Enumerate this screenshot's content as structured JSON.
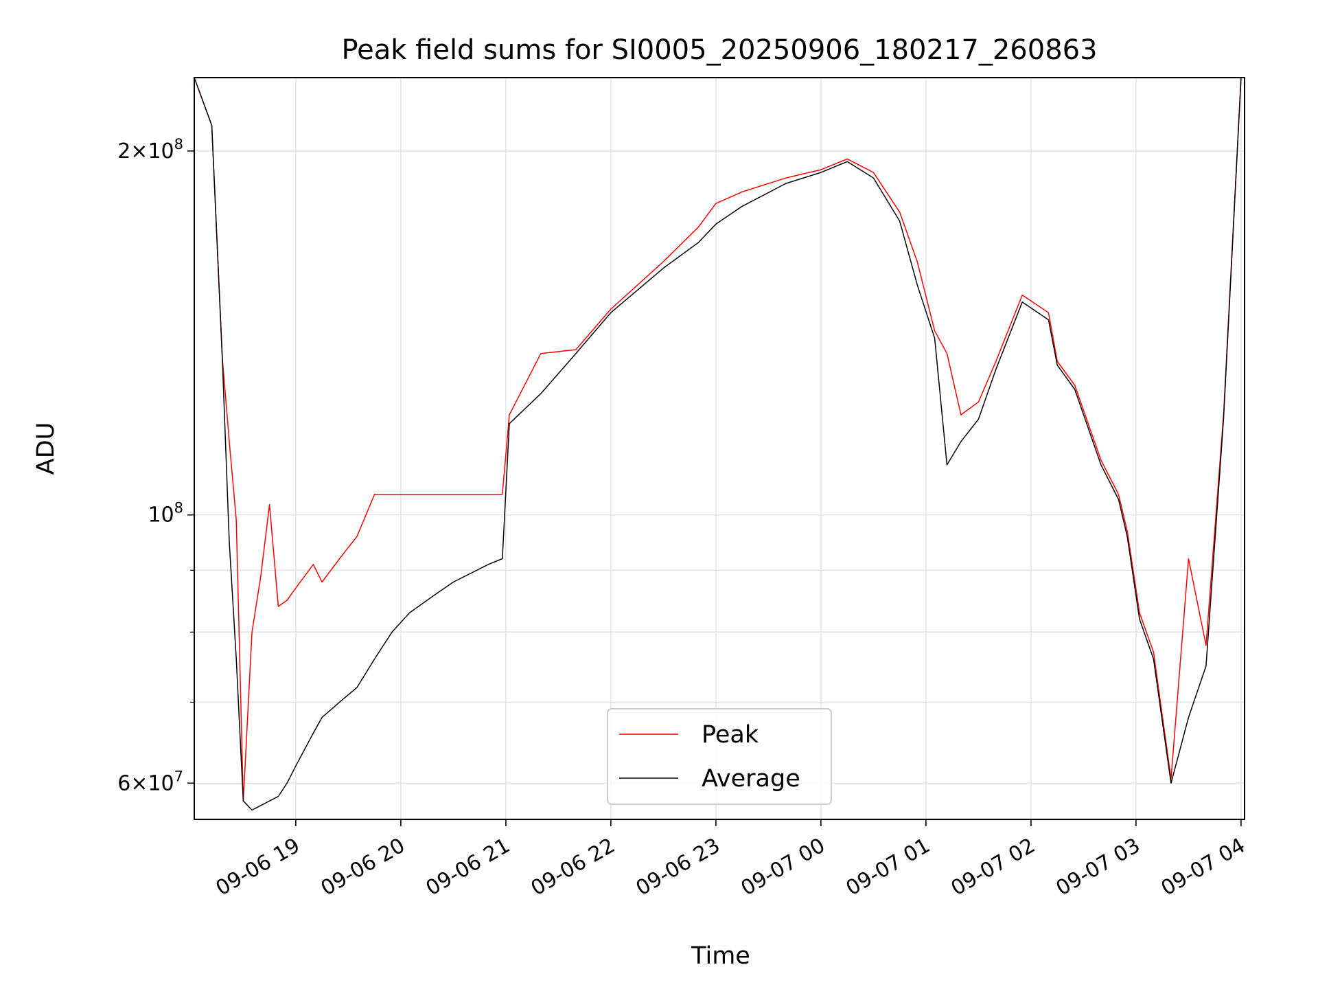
{
  "chart_data": {
    "type": "line",
    "title": "Peak field sums for SI0005_20250906_180217_260863",
    "xlabel": "Time",
    "ylabel": "ADU",
    "yscale": "log",
    "grid": true,
    "legend_position": "bottom-center",
    "xlim": [
      "2025-09-06 18:02",
      "2025-09-07 04:02"
    ],
    "ylim": [
      56000000,
      230000000
    ],
    "x_ticks": [
      "09-06 19",
      "09-06 20",
      "09-06 21",
      "09-06 22",
      "09-06 23",
      "09-07 00",
      "09-07 01",
      "09-07 02",
      "09-07 03",
      "09-07 04"
    ],
    "y_tick_labels": [
      {
        "value": 200000000,
        "mantissa": "2",
        "exponent": "8"
      },
      {
        "value": 100000000,
        "mantissa": "",
        "exponent": "8"
      },
      {
        "value": 60000000,
        "mantissa": "6",
        "exponent": "7"
      }
    ],
    "y_minor_ticks": [
      70000000,
      80000000,
      90000000
    ],
    "colors": {
      "Peak": "#ff0000",
      "Average": "#000000"
    },
    "x": [
      "2025-09-06 18:02",
      "2025-09-06 18:12",
      "2025-09-06 18:18",
      "2025-09-06 18:22",
      "2025-09-06 18:26",
      "2025-09-06 18:30",
      "2025-09-06 18:35",
      "2025-09-06 18:40",
      "2025-09-06 18:45",
      "2025-09-06 18:50",
      "2025-09-06 18:55",
      "2025-09-06 19:00",
      "2025-09-06 19:10",
      "2025-09-06 19:15",
      "2025-09-06 19:25",
      "2025-09-06 19:35",
      "2025-09-06 19:45",
      "2025-09-06 19:55",
      "2025-09-06 20:05",
      "2025-09-06 20:20",
      "2025-09-06 20:30",
      "2025-09-06 20:50",
      "2025-09-06 20:58",
      "2025-09-06 21:02",
      "2025-09-06 21:20",
      "2025-09-06 21:40",
      "2025-09-06 22:00",
      "2025-09-06 22:30",
      "2025-09-06 22:50",
      "2025-09-06 23:00",
      "2025-09-06 23:15",
      "2025-09-06 23:40",
      "2025-09-07 00:00",
      "2025-09-07 00:15",
      "2025-09-07 00:30",
      "2025-09-07 00:45",
      "2025-09-07 00:55",
      "2025-09-07 01:05",
      "2025-09-07 01:12",
      "2025-09-07 01:20",
      "2025-09-07 01:30",
      "2025-09-07 01:40",
      "2025-09-07 01:55",
      "2025-09-07 02:10",
      "2025-09-07 02:15",
      "2025-09-07 02:25",
      "2025-09-07 02:40",
      "2025-09-07 02:50",
      "2025-09-07 02:55",
      "2025-09-07 03:02",
      "2025-09-07 03:10",
      "2025-09-07 03:20",
      "2025-09-07 03:30",
      "2025-09-07 03:40",
      "2025-09-07 03:50",
      "2025-09-07 04:00",
      "2025-09-07 04:02"
    ],
    "series": [
      {
        "name": "Average",
        "values": [
          230000000,
          210000000,
          135000000,
          95000000,
          76000000,
          58000000,
          57000000,
          57500000,
          58000000,
          58500000,
          60000000,
          62000000,
          66000000,
          68000000,
          70000000,
          72000000,
          76000000,
          80000000,
          83000000,
          86000000,
          88000000,
          91000000,
          92000000,
          119000000,
          126000000,
          136000000,
          147000000,
          160000000,
          168000000,
          174000000,
          180000000,
          188000000,
          192000000,
          196000000,
          190000000,
          175000000,
          155000000,
          140000000,
          110000000,
          115000000,
          120000000,
          132000000,
          150000000,
          145000000,
          133000000,
          127000000,
          110000000,
          103000000,
          96000000,
          82000000,
          76000000,
          60000000,
          68000000,
          75000000,
          120000000,
          230000000,
          230000000
        ]
      },
      {
        "name": "Peak",
        "values": [
          230000000,
          210000000,
          135000000,
          115000000,
          99000000,
          58000000,
          80000000,
          89000000,
          102000000,
          84000000,
          85000000,
          87000000,
          91000000,
          88000000,
          92000000,
          96000000,
          104000000,
          104000000,
          104000000,
          104000000,
          104000000,
          104000000,
          104000000,
          121000000,
          136000000,
          137000000,
          148000000,
          162000000,
          173000000,
          181000000,
          185000000,
          190000000,
          193000000,
          197000000,
          192000000,
          178000000,
          162000000,
          142000000,
          136000000,
          121000000,
          124000000,
          134000000,
          152000000,
          147000000,
          134000000,
          128000000,
          111000000,
          104000000,
          97000000,
          83000000,
          77000000,
          60500000,
          92000000,
          78000000,
          121000000,
          230000000,
          230000000
        ]
      }
    ]
  }
}
